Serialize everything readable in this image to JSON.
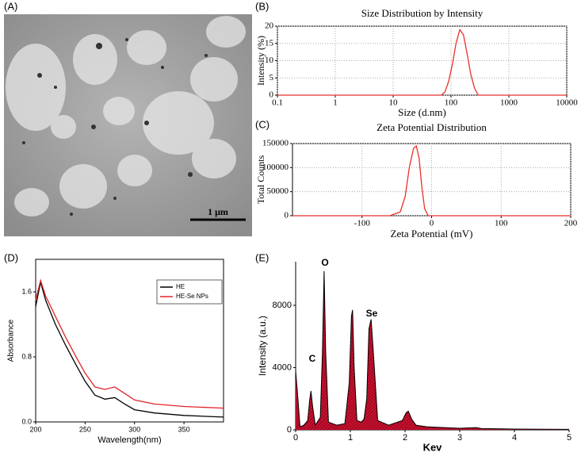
{
  "chart_data": [
    {
      "type": "image",
      "label": "(A)",
      "scale_bar_label": "1 μm"
    },
    {
      "type": "line",
      "label": "(B)",
      "title": "Size Distribution by Intensity",
      "x_label": "Size (d.nm)",
      "y_label": "Intensity (%)",
      "x": [
        0.1,
        1,
        10,
        68,
        79,
        91,
        106,
        122,
        142,
        164,
        190,
        220,
        255,
        295,
        1000,
        10000
      ],
      "series": [
        {
          "color": "#e8302a",
          "values": [
            0,
            0,
            0,
            0,
            1,
            4,
            9,
            15,
            19,
            17.5,
            12,
            6,
            2,
            0,
            0,
            0
          ]
        }
      ],
      "xlim": [
        0.1,
        10000
      ],
      "xticks": [
        0.1,
        1,
        10,
        100,
        1000,
        10000
      ],
      "x_log": true,
      "ylim": [
        0,
        20
      ],
      "yticks": [
        0,
        5,
        10,
        15,
        20
      ],
      "grid": true
    },
    {
      "type": "line",
      "label": "(C)",
      "title": "Zeta Potential Distribution",
      "x_label": "Zeta Potential (mV)",
      "y_label": "Total Counts",
      "x": [
        -200,
        -60,
        -45,
        -38,
        -32,
        -26,
        -22,
        -18,
        -14,
        -10,
        -5,
        200
      ],
      "series": [
        {
          "color": "#e8302a",
          "values": [
            0,
            0,
            8000,
            40000,
            100000,
            140000,
            145000,
            120000,
            60000,
            15000,
            0,
            0
          ]
        }
      ],
      "xlim": [
        -200,
        200
      ],
      "xticks": [
        -100,
        0,
        100,
        200
      ],
      "ylim": [
        0,
        150000
      ],
      "yticks": [
        0,
        50000,
        100000,
        150000
      ],
      "grid": true
    },
    {
      "type": "line",
      "label": "(D)",
      "x_label": "Wavelength(nm)",
      "y_label": "Absorbance",
      "x": [
        200,
        205,
        210,
        220,
        230,
        240,
        250,
        260,
        270,
        280,
        290,
        300,
        320,
        350,
        390
      ],
      "series": [
        {
          "name": "HE",
          "color": "#000000",
          "values": [
            1.42,
            1.72,
            1.5,
            1.2,
            0.95,
            0.72,
            0.5,
            0.33,
            0.28,
            0.3,
            0.22,
            0.15,
            0.11,
            0.08,
            0.06
          ]
        },
        {
          "name": "HE-Se NPs",
          "color": "#e0242a",
          "values": [
            1.5,
            1.74,
            1.55,
            1.3,
            1.05,
            0.82,
            0.6,
            0.43,
            0.4,
            0.43,
            0.35,
            0.27,
            0.22,
            0.19,
            0.17
          ]
        }
      ],
      "xlim": [
        200,
        390
      ],
      "xticks": [
        200,
        250,
        300,
        350
      ],
      "ylim": [
        0,
        2.0
      ],
      "yticks": [
        {
          "value": 0,
          "label": "0.0"
        },
        0.8,
        1.6
      ],
      "grid": false,
      "legend": "upper right"
    },
    {
      "type": "area",
      "label": "(E)",
      "x_label": "Kev",
      "y_label": "Intensity (a.u.)",
      "x": [
        0,
        0.03,
        0.08,
        0.15,
        0.22,
        0.26,
        0.28,
        0.31,
        0.36,
        0.45,
        0.49,
        0.52,
        0.55,
        0.6,
        0.75,
        0.9,
        0.98,
        1.02,
        1.04,
        1.07,
        1.12,
        1.2,
        1.25,
        1.3,
        1.34,
        1.38,
        1.42,
        1.5,
        1.7,
        1.95,
        2.02,
        2.06,
        2.12,
        2.2,
        2.4,
        3.0,
        3.3,
        3.4,
        4.0,
        5.0
      ],
      "series": [
        {
          "color": "#c8102e",
          "values": [
            3800,
            2500,
            200,
            300,
            600,
            2000,
            2500,
            1500,
            300,
            800,
            5000,
            10200,
            5000,
            500,
            300,
            400,
            3000,
            7300,
            7700,
            4000,
            600,
            500,
            700,
            2000,
            6500,
            7100,
            5000,
            600,
            300,
            600,
            1100,
            1200,
            700,
            300,
            200,
            100,
            150,
            80,
            50,
            30
          ]
        }
      ],
      "xlim": [
        0,
        5
      ],
      "xticks": [
        0,
        1,
        2,
        3,
        4,
        5
      ],
      "ylim": [
        0,
        10800
      ],
      "yticks": [
        0,
        4000,
        8000
      ],
      "grid": false,
      "annotations": [
        "C",
        "O",
        "Se"
      ]
    }
  ]
}
